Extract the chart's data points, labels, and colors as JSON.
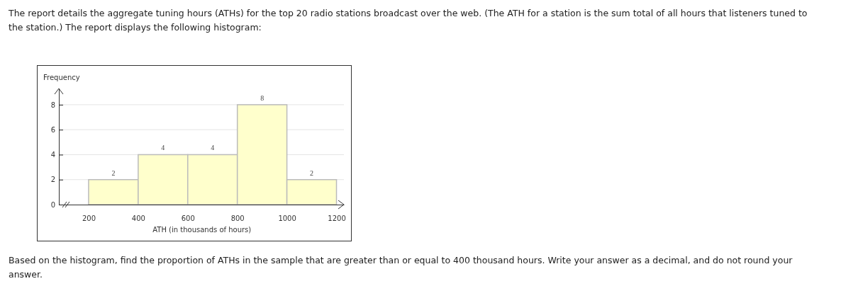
{
  "chart_data": {
    "type": "histogram",
    "annotations": [
      "The report details the aggregate tuning hours (ATHs) for the top 20 radio stations broadcast over the web. (The ATH for a station is the sum total of all hours that listeners tuned to the station.) The report displays the following histogram:",
      "Based on the histogram, find the proportion of ATHs in the sample that are greater than or equal to 400 thousand hours. Write your answer as a decimal, and do not round your answer."
    ],
    "xlabel": "ATH (in thousands of hours)",
    "ylabel": "Frequency",
    "bins": [
      200,
      400,
      600,
      800,
      1000,
      1200
    ],
    "values": [
      2,
      4,
      4,
      8,
      2
    ],
    "color": "#ffffcc",
    "xlim": [
      80,
      1230
    ],
    "xticks": [
      200,
      400,
      600,
      800,
      1000,
      1200
    ],
    "ylim": [
      0,
      9.3
    ],
    "yticks": [
      0,
      2,
      4,
      6,
      8
    ],
    "grid": "y",
    "data_labels": true
  }
}
